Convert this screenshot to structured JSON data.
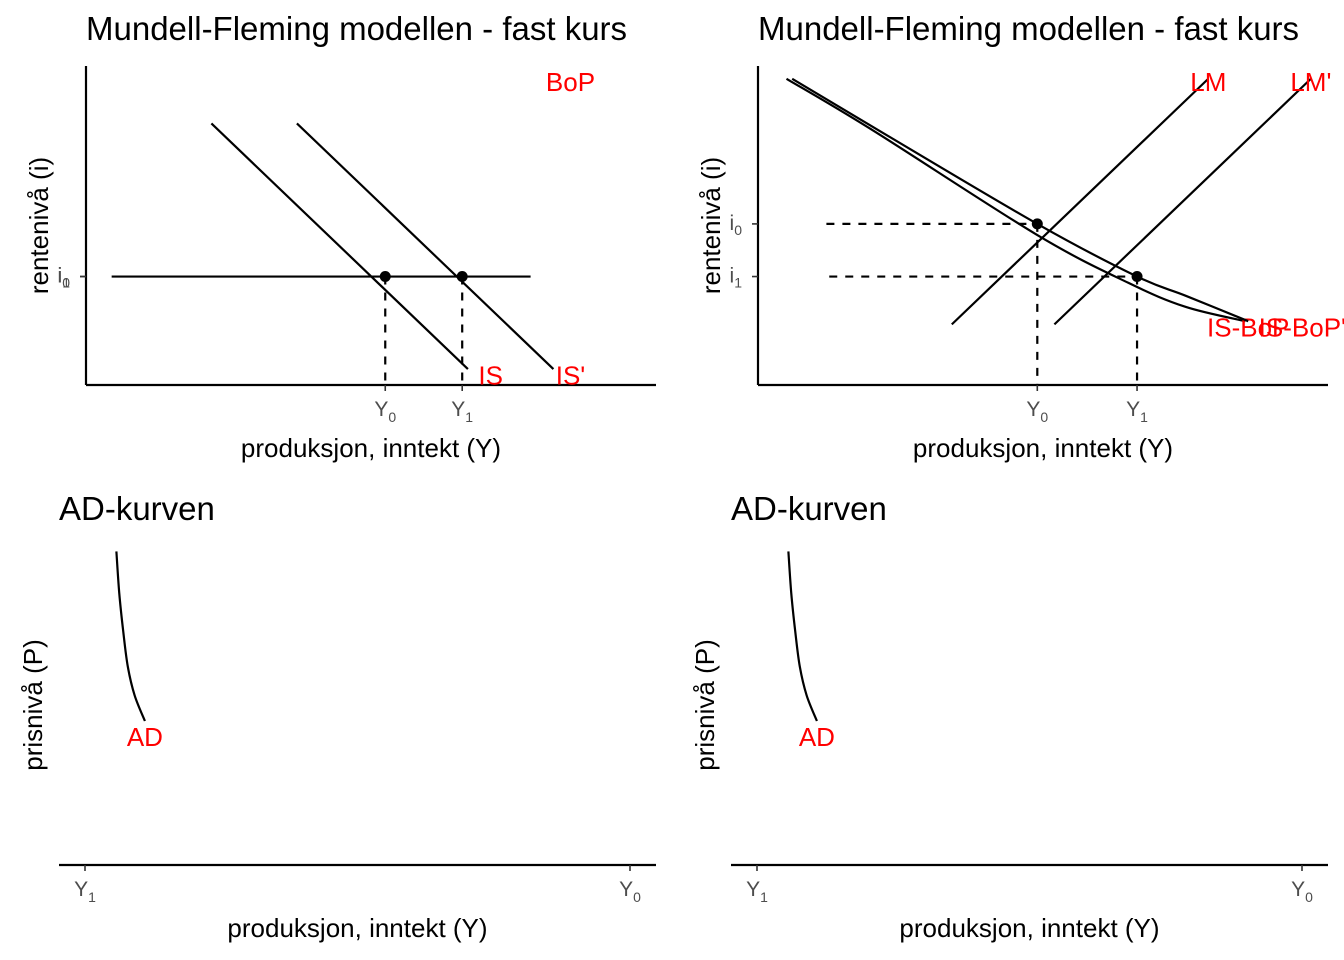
{
  "label_color": "#ff0000",
  "chart_data": [
    {
      "type": "line",
      "title": "Mundell-Fleming modellen - fast kurs",
      "xlabel": "produksjon, inntekt (Y)",
      "ylabel": "rentenivå (i)",
      "xlim": [
        0,
        10
      ],
      "ylim": [
        0,
        10
      ],
      "x_ticks": [
        {
          "base": "Y",
          "sub": "0",
          "value": 5.25
        },
        {
          "base": "Y",
          "sub": "1",
          "value": 6.6
        }
      ],
      "y_ticks": [
        {
          "base": "i",
          "sub": "0",
          "value": 3.4
        },
        {
          "base": "i",
          "sub": "1",
          "value": 3.4
        }
      ],
      "series": [
        {
          "name": "BoP",
          "x": [
            0.45,
            7.8
          ],
          "y": [
            3.4,
            3.4
          ],
          "label_at": [
            8.5,
            9.5
          ],
          "label_anchor": "middle"
        },
        {
          "name": "IS",
          "x": [
            2.2,
            6.7
          ],
          "y": [
            8.2,
            0.5
          ],
          "label_at": [
            7.1,
            0.3
          ],
          "label_anchor": "middle"
        },
        {
          "name": "IS'",
          "x": [
            3.7,
            8.2
          ],
          "y": [
            8.2,
            0.5
          ],
          "label_at": [
            8.5,
            0.3
          ],
          "label_anchor": "middle"
        }
      ],
      "points": [
        {
          "x": 5.25,
          "y": 3.4
        },
        {
          "x": 6.6,
          "y": 3.4
        }
      ],
      "dashed": [
        {
          "x": [
            5.25,
            5.25
          ],
          "y": [
            3.4,
            0
          ]
        },
        {
          "x": [
            6.6,
            6.6
          ],
          "y": [
            3.4,
            0
          ]
        }
      ]
    },
    {
      "type": "line",
      "title": "Mundell-Fleming modellen - fast kurs",
      "xlabel": "produksjon, inntekt (Y)",
      "ylabel": "rentenivå (i)",
      "xlim": [
        0,
        10
      ],
      "ylim": [
        0,
        10
      ],
      "x_ticks": [
        {
          "base": "Y",
          "sub": "0",
          "value": 4.9
        },
        {
          "base": "Y",
          "sub": "1",
          "value": 6.65
        }
      ],
      "y_ticks": [
        {
          "base": "i",
          "sub": "0",
          "value": 5.05
        },
        {
          "base": "i",
          "sub": "1",
          "value": 3.4
        }
      ],
      "series": [
        {
          "name": "LM",
          "x": [
            3.4,
            7.9
          ],
          "y": [
            1.9,
            9.6
          ],
          "label_at": [
            7.9,
            9.5
          ],
          "label_anchor": "middle"
        },
        {
          "name": "LM'",
          "x": [
            5.2,
            9.7
          ],
          "y": [
            1.9,
            9.6
          ],
          "label_at": [
            9.7,
            9.5
          ],
          "label_anchor": "middle"
        },
        {
          "name": "IS-BoP",
          "x": [
            0.5,
            2.0,
            4.9,
            6.5,
            7.5,
            8.55
          ],
          "y": [
            9.6,
            8.0,
            4.7,
            3.2,
            2.45,
            2.0
          ],
          "label_at": [
            8.6,
            1.8
          ],
          "label_anchor": "middle"
        },
        {
          "name": "IS-BoP'",
          "x": [
            0.6,
            2.1,
            4.9,
            6.65,
            7.5,
            8.6
          ],
          "y": [
            9.6,
            8.0,
            5.05,
            3.4,
            2.8,
            2.0
          ],
          "label_at": [
            9.55,
            1.8
          ],
          "label_anchor": "middle"
        }
      ],
      "points": [
        {
          "x": 4.9,
          "y": 5.05
        },
        {
          "x": 6.65,
          "y": 3.4
        }
      ],
      "dashed": [
        {
          "x": [
            1.2,
            4.9
          ],
          "y": [
            5.05,
            5.05
          ]
        },
        {
          "x": [
            4.9,
            4.9
          ],
          "y": [
            5.05,
            0
          ]
        },
        {
          "x": [
            1.25,
            6.65
          ],
          "y": [
            3.4,
            3.4
          ]
        },
        {
          "x": [
            6.65,
            6.65
          ],
          "y": [
            3.4,
            0
          ]
        }
      ]
    },
    {
      "type": "line",
      "title": "AD-kurven",
      "xlabel": "produksjon, inntekt (Y)",
      "ylabel": "prisnivå (P)",
      "xlim": [
        0,
        10
      ],
      "ylim": [
        0,
        10
      ],
      "x_ticks": [
        {
          "base": "Y",
          "sub": "1",
          "value": 0.45
        },
        {
          "base": "Y",
          "sub": "0",
          "value": 10.0
        }
      ],
      "y_ticks": [],
      "series": [
        {
          "name": "AD",
          "x": [
            1.0,
            1.05,
            1.12,
            1.2,
            1.32,
            1.5
          ],
          "y": [
            9.8,
            8.5,
            7.3,
            6.2,
            5.3,
            4.5
          ],
          "label_at": [
            1.5,
            4.0
          ],
          "label_anchor": "middle"
        }
      ],
      "points": [],
      "dashed": []
    },
    {
      "type": "line",
      "title": "AD-kurven",
      "xlabel": "produksjon, inntekt (Y)",
      "ylabel": "prisnivå (P)",
      "xlim": [
        0,
        10
      ],
      "ylim": [
        0,
        10
      ],
      "x_ticks": [
        {
          "base": "Y",
          "sub": "1",
          "value": 0.45
        },
        {
          "base": "Y",
          "sub": "0",
          "value": 10.0
        }
      ],
      "y_ticks": [],
      "series": [
        {
          "name": "AD",
          "x": [
            1.0,
            1.05,
            1.12,
            1.2,
            1.32,
            1.5
          ],
          "y": [
            9.8,
            8.5,
            7.3,
            6.2,
            5.3,
            4.5
          ],
          "label_at": [
            1.5,
            4.0
          ],
          "label_anchor": "middle"
        }
      ],
      "points": [],
      "dashed": []
    }
  ]
}
